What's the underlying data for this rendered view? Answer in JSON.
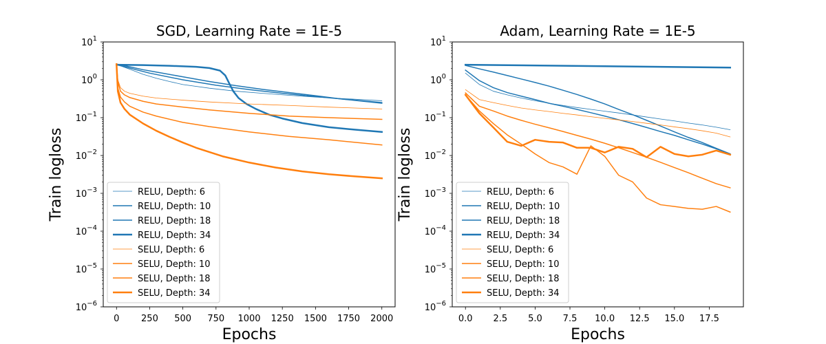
{
  "chart_data": [
    {
      "type": "line",
      "title": "SGD, Learning Rate = 1E-5",
      "xlabel": "Epochs",
      "ylabel": "Train logloss",
      "yscale": "log",
      "ylim": [
        1e-06,
        10
      ],
      "xlim": [
        -100,
        2100
      ],
      "xticks": [
        0,
        250,
        500,
        750,
        1000,
        1250,
        1500,
        1750,
        2000
      ],
      "xtick_labels": [
        "0",
        "250",
        "500",
        "750",
        "1000",
        "1250",
        "1500",
        "1750",
        "2000"
      ],
      "yticks": [
        1e-06,
        1e-05,
        0.0001,
        0.001,
        0.01,
        0.1,
        1,
        10
      ],
      "ytick_labels": [
        {
          "base": "10",
          "exp": "−6"
        },
        {
          "base": "10",
          "exp": "−5"
        },
        {
          "base": "10",
          "exp": "−4"
        },
        {
          "base": "10",
          "exp": "−3"
        },
        {
          "base": "10",
          "exp": "−2"
        },
        {
          "base": "10",
          "exp": "−1"
        },
        {
          "base": "10",
          "exp": "0"
        },
        {
          "base": "10",
          "exp": "1"
        }
      ],
      "legend_position": "lower-left",
      "series": [
        {
          "name": "RELU, Depth: 6",
          "color": "#1f77b4",
          "width": 0.8,
          "x": [
            0,
            50,
            100,
            200,
            300,
            400,
            500,
            700,
            900,
            1100,
            1300,
            1500,
            1700,
            2000
          ],
          "y": [
            2.6,
            2.2,
            1.9,
            1.4,
            1.1,
            0.9,
            0.75,
            0.6,
            0.5,
            0.44,
            0.39,
            0.35,
            0.32,
            0.28
          ]
        },
        {
          "name": "RELU, Depth: 10",
          "color": "#1f77b4",
          "width": 1.5,
          "x": [
            0,
            50,
            100,
            200,
            300,
            500,
            700,
            900,
            1100,
            1300,
            1500,
            1700,
            2000
          ],
          "y": [
            2.6,
            2.4,
            2.2,
            1.85,
            1.6,
            1.2,
            0.9,
            0.7,
            0.56,
            0.46,
            0.38,
            0.31,
            0.24
          ]
        },
        {
          "name": "RELU, Depth: 18",
          "color": "#1f77b4",
          "width": 1.5,
          "x": [
            0,
            250,
            500,
            750,
            1000,
            1250,
            1500,
            1750,
            2000
          ],
          "y": [
            2.5,
            1.5,
            1.0,
            0.72,
            0.55,
            0.44,
            0.36,
            0.3,
            0.25
          ]
        },
        {
          "name": "RELU, Depth: 34",
          "color": "#1f77b4",
          "width": 2.5,
          "x": [
            0,
            200,
            400,
            600,
            700,
            780,
            820,
            850,
            880,
            920,
            980,
            1050,
            1150,
            1250,
            1400,
            1600,
            1800,
            2000
          ],
          "y": [
            2.5,
            2.45,
            2.35,
            2.2,
            2.05,
            1.75,
            1.3,
            0.8,
            0.5,
            0.33,
            0.23,
            0.17,
            0.12,
            0.095,
            0.072,
            0.056,
            0.048,
            0.042
          ]
        },
        {
          "name": "SELU, Depth: 6",
          "color": "#ff7f0e",
          "width": 0.8,
          "x": [
            0,
            10,
            30,
            60,
            100,
            200,
            300,
            500,
            700,
            1000,
            1300,
            1600,
            2000
          ],
          "y": [
            2.6,
            1.0,
            0.62,
            0.5,
            0.44,
            0.37,
            0.33,
            0.29,
            0.26,
            0.23,
            0.21,
            0.19,
            0.17
          ]
        },
        {
          "name": "SELU, Depth: 10",
          "color": "#ff7f0e",
          "width": 1.5,
          "x": [
            0,
            10,
            30,
            60,
            100,
            200,
            300,
            500,
            700,
            1000,
            1300,
            1600,
            2000
          ],
          "y": [
            2.6,
            0.9,
            0.5,
            0.4,
            0.34,
            0.27,
            0.23,
            0.19,
            0.16,
            0.13,
            0.11,
            0.1,
            0.09
          ]
        },
        {
          "name": "SELU, Depth: 18",
          "color": "#ff7f0e",
          "width": 1.5,
          "x": [
            0,
            10,
            30,
            60,
            100,
            200,
            300,
            500,
            700,
            1000,
            1300,
            1600,
            2000
          ],
          "y": [
            2.6,
            0.6,
            0.35,
            0.26,
            0.2,
            0.14,
            0.11,
            0.075,
            0.058,
            0.042,
            0.032,
            0.026,
            0.019
          ]
        },
        {
          "name": "SELU, Depth: 34",
          "color": "#ff7f0e",
          "width": 2.5,
          "x": [
            0,
            10,
            30,
            60,
            100,
            200,
            300,
            400,
            500,
            600,
            800,
            1000,
            1200,
            1400,
            1600,
            1800,
            2000
          ],
          "y": [
            2.6,
            0.5,
            0.25,
            0.17,
            0.12,
            0.07,
            0.045,
            0.031,
            0.022,
            0.016,
            0.0095,
            0.0065,
            0.0048,
            0.0038,
            0.0032,
            0.0028,
            0.0025
          ]
        }
      ]
    },
    {
      "type": "line",
      "title": "Adam, Learning Rate = 1E-5",
      "xlabel": "Epochs",
      "ylabel": "Train logloss",
      "yscale": "log",
      "ylim": [
        1e-06,
        10
      ],
      "xlim": [
        -0.95,
        19.95
      ],
      "xticks": [
        0,
        2.5,
        5,
        7.5,
        10,
        12.5,
        15,
        17.5
      ],
      "xtick_labels": [
        "0.0",
        "2.5",
        "5.0",
        "7.5",
        "10.0",
        "12.5",
        "15.0",
        "17.5"
      ],
      "yticks": [
        1e-06,
        1e-05,
        0.0001,
        0.001,
        0.01,
        0.1,
        1,
        10
      ],
      "ytick_labels": [
        {
          "base": "10",
          "exp": "−6"
        },
        {
          "base": "10",
          "exp": "−5"
        },
        {
          "base": "10",
          "exp": "−4"
        },
        {
          "base": "10",
          "exp": "−3"
        },
        {
          "base": "10",
          "exp": "−2"
        },
        {
          "base": "10",
          "exp": "−1"
        },
        {
          "base": "10",
          "exp": "0"
        },
        {
          "base": "10",
          "exp": "1"
        }
      ],
      "legend_position": "lower-left",
      "series": [
        {
          "name": "RELU, Depth: 6",
          "color": "#1f77b4",
          "width": 0.8,
          "x": [
            0,
            1,
            2,
            3,
            4,
            5,
            6,
            7,
            8,
            9,
            10,
            11,
            12,
            13,
            14,
            15,
            16,
            17,
            18,
            19
          ],
          "y": [
            1.5,
            0.75,
            0.5,
            0.4,
            0.33,
            0.28,
            0.24,
            0.21,
            0.185,
            0.165,
            0.148,
            0.133,
            0.118,
            0.104,
            0.092,
            0.082,
            0.072,
            0.064,
            0.056,
            0.048
          ]
        },
        {
          "name": "RELU, Depth: 10",
          "color": "#1f77b4",
          "width": 1.5,
          "x": [
            0,
            1,
            2,
            3,
            4,
            5,
            6,
            7,
            8,
            9,
            10,
            11,
            12,
            13,
            14,
            15,
            16,
            17,
            18,
            19
          ],
          "y": [
            1.8,
            0.95,
            0.62,
            0.46,
            0.37,
            0.3,
            0.24,
            0.2,
            0.165,
            0.135,
            0.11,
            0.088,
            0.07,
            0.055,
            0.043,
            0.034,
            0.026,
            0.02,
            0.015,
            0.011
          ]
        },
        {
          "name": "RELU, Depth: 18",
          "color": "#1f77b4",
          "width": 1.5,
          "x": [
            0,
            1,
            2,
            3,
            4,
            5,
            6,
            7,
            8,
            9,
            10,
            11,
            12,
            13,
            14,
            15,
            16,
            17,
            18,
            19
          ],
          "y": [
            2.4,
            1.95,
            1.6,
            1.3,
            1.05,
            0.85,
            0.68,
            0.53,
            0.41,
            0.31,
            0.23,
            0.165,
            0.12,
            0.085,
            0.06,
            0.042,
            0.03,
            0.022,
            0.0155,
            0.011
          ]
        },
        {
          "name": "RELU, Depth: 34",
          "color": "#1f77b4",
          "width": 2.5,
          "x": [
            0,
            19
          ],
          "y": [
            2.5,
            2.1
          ]
        },
        {
          "name": "SELU, Depth: 6",
          "color": "#ff7f0e",
          "width": 0.8,
          "x": [
            0,
            1,
            2,
            3,
            4,
            5,
            6,
            7,
            8,
            9,
            10,
            11,
            12,
            13,
            14,
            15,
            16,
            17,
            18,
            19
          ],
          "y": [
            0.55,
            0.3,
            0.25,
            0.21,
            0.18,
            0.16,
            0.145,
            0.13,
            0.118,
            0.106,
            0.096,
            0.087,
            0.079,
            0.071,
            0.064,
            0.057,
            0.051,
            0.045,
            0.039,
            0.031
          ]
        },
        {
          "name": "SELU, Depth: 10",
          "color": "#ff7f0e",
          "width": 1.5,
          "x": [
            0,
            1,
            2,
            3,
            4,
            5,
            6,
            7,
            8,
            9,
            10,
            11,
            12,
            13,
            14,
            15,
            16,
            17,
            18,
            19
          ],
          "y": [
            0.45,
            0.2,
            0.15,
            0.11,
            0.085,
            0.067,
            0.054,
            0.043,
            0.034,
            0.027,
            0.021,
            0.016,
            0.012,
            0.009,
            0.0066,
            0.0048,
            0.0035,
            0.0025,
            0.0018,
            0.0014
          ]
        },
        {
          "name": "SELU, Depth: 18",
          "color": "#ff7f0e",
          "width": 1.5,
          "x": [
            0,
            1,
            2,
            3,
            4,
            5,
            6,
            7,
            8,
            9,
            10,
            11,
            12,
            13,
            14,
            15,
            16,
            17,
            18,
            19
          ],
          "y": [
            0.4,
            0.15,
            0.07,
            0.035,
            0.02,
            0.011,
            0.0065,
            0.005,
            0.0032,
            0.018,
            0.0095,
            0.003,
            0.002,
            0.00075,
            0.0005,
            0.00045,
            0.0004,
            0.00038,
            0.00045,
            0.00032
          ]
        },
        {
          "name": "SELU, Depth: 34",
          "color": "#ff7f0e",
          "width": 2.5,
          "x": [
            0,
            1,
            2,
            3,
            4,
            5,
            6,
            7,
            8,
            9,
            10,
            11,
            12,
            13,
            14,
            15,
            16,
            17,
            18,
            19
          ],
          "y": [
            0.4,
            0.13,
            0.055,
            0.023,
            0.018,
            0.026,
            0.023,
            0.022,
            0.016,
            0.016,
            0.012,
            0.017,
            0.015,
            0.009,
            0.017,
            0.011,
            0.0095,
            0.0105,
            0.0135,
            0.0105
          ]
        }
      ]
    }
  ]
}
